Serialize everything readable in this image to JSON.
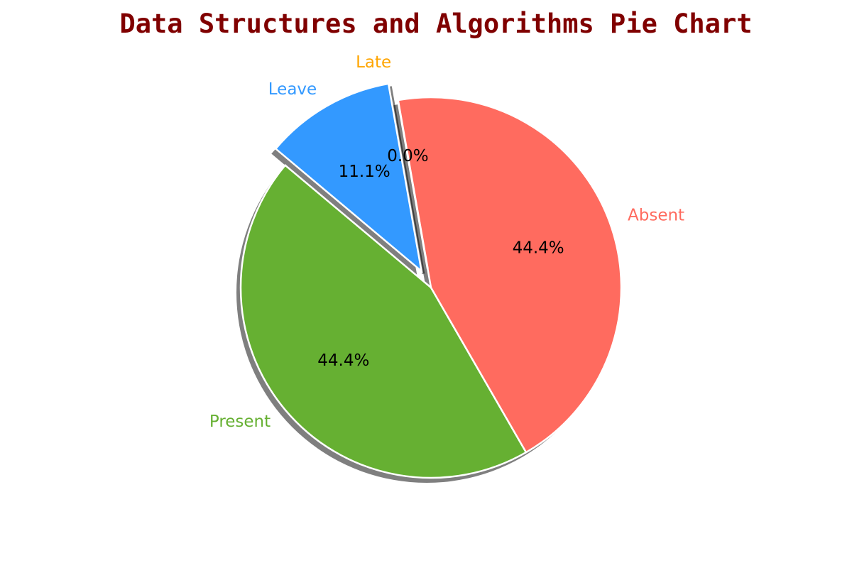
{
  "chart_data": {
    "type": "pie",
    "title": "Data Structures and Algorithms Pie Chart",
    "title_color": "#800000",
    "categories": [
      "Present",
      "Absent",
      "Late",
      "Leave"
    ],
    "values": [
      44.4,
      44.4,
      0.0,
      11.1
    ],
    "percent_labels": [
      "44.4%",
      "44.4%",
      "0.0%",
      "11.1%"
    ],
    "colors": [
      "#66b032",
      "#ff6b5f",
      "#ffa500",
      "#3399ff"
    ],
    "label_colors": [
      "#66b032",
      "#ff6b5f",
      "#ffa500",
      "#3399ff"
    ],
    "exploded": [
      false,
      false,
      true,
      true
    ],
    "shadow": true,
    "start_angle_deg": 140
  }
}
